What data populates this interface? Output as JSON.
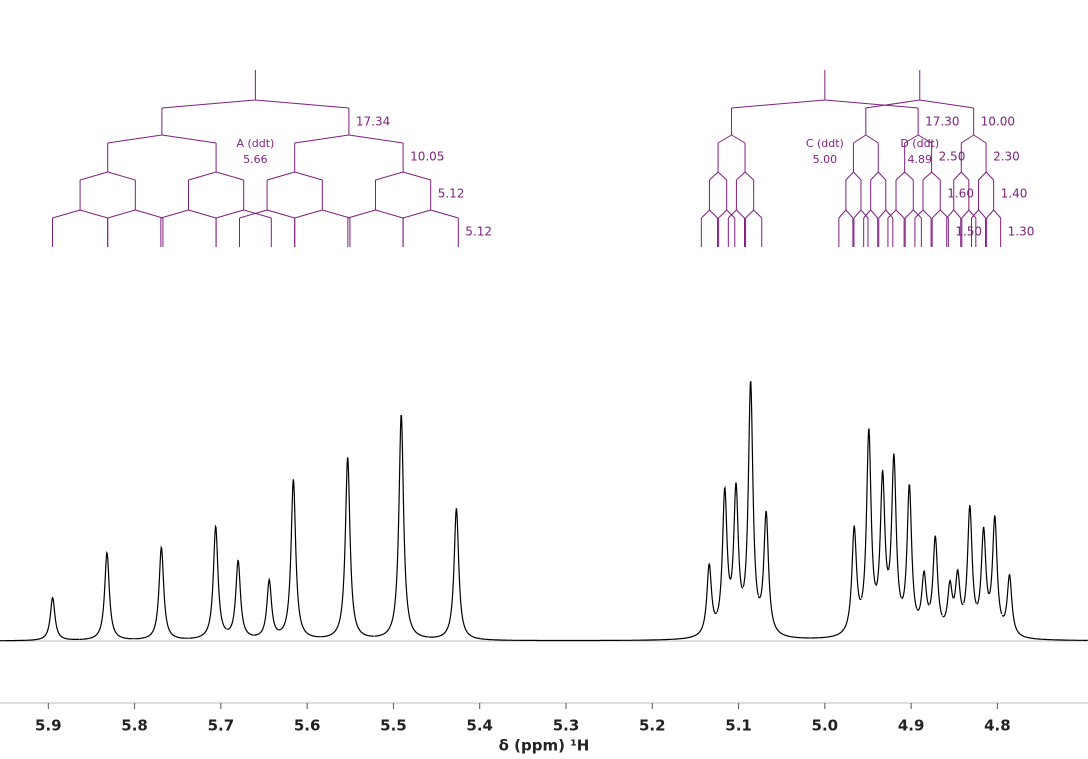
{
  "chart_data": {
    "type": "nmr",
    "xlabel": "δ (ppm) ¹H",
    "xlim": [
      5.956,
      4.695
    ],
    "xticks": [
      5.9,
      5.8,
      5.7,
      5.6,
      5.5,
      5.4,
      5.3,
      5.2,
      5.1,
      {
        "value": 5,
        "label": "5.0"
      },
      4.9,
      4.8
    ],
    "ylim": [
      0,
      300
    ],
    "color": "#000000",
    "peaks": {
      "x": [
        5.895,
        5.832,
        5.769,
        5.706,
        5.68,
        5.644,
        5.616,
        5.553,
        5.491,
        5.427,
        5.134,
        5.116,
        5.103,
        5.086,
        5.068,
        4.966,
        4.949,
        4.933,
        4.92,
        4.902,
        4.885,
        4.872,
        4.855,
        4.846,
        4.832,
        4.816,
        4.803,
        4.786
      ],
      "values": [
        43,
        88,
        93,
        113,
        78,
        58,
        160,
        183,
        226,
        132,
        70,
        140,
        140,
        250,
        120,
        105,
        200,
        150,
        170,
        145,
        55,
        95,
        45,
        55,
        125,
        100,
        115,
        60
      ]
    },
    "multiplet_color": "#7f1f7f",
    "multiplets": [
      {
        "name": "A (ddt)",
        "shift": 5.66,
        "couplings": [
          17.34,
          10.05,
          5.12,
          5.12
        ]
      },
      {
        "name": "C (ddt)",
        "shift": {
          "value": 5,
          "label": "5.00"
        },
        "couplings": [
          {
            "value": 17.3,
            "label": "17.30"
          },
          {
            "value": 2.5,
            "label": "2.50"
          },
          {
            "value": 1.6,
            "label": "1.60"
          },
          {
            "value": 1.5,
            "label": "1.50"
          }
        ]
      },
      {
        "name": "D (ddt)",
        "shift": 4.89,
        "couplings": [
          {
            "value": 10,
            "label": "10.00"
          },
          {
            "value": 2.3,
            "label": "2.30"
          },
          {
            "value": 1.4,
            "label": "1.40"
          },
          {
            "value": 1.3,
            "label": "1.30"
          }
        ]
      }
    ]
  }
}
